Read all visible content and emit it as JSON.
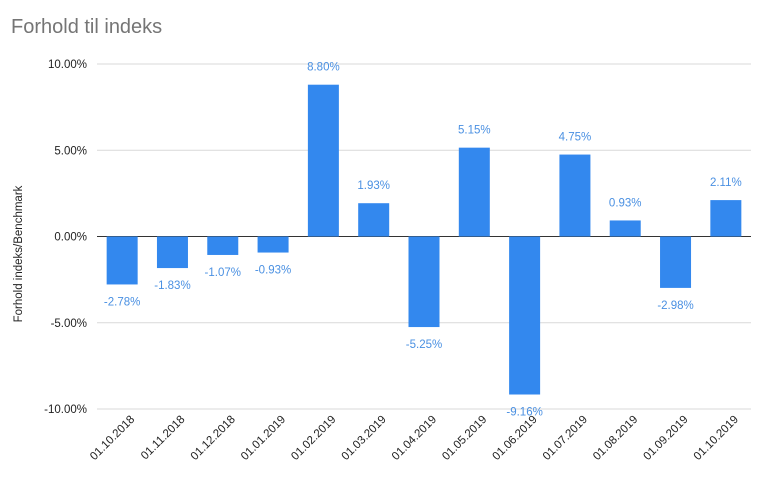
{
  "chart_data": {
    "type": "bar",
    "title": "Forhold til indeks",
    "ylabel": "Forhold indeks/Benchmark",
    "xlabel": "",
    "ylim": [
      -10,
      10
    ],
    "yticks": [
      10,
      5,
      0,
      -5,
      -10
    ],
    "ytick_labels": [
      "10.00%",
      "5.00%",
      "0.00%",
      "-5.00%",
      "-10.00%"
    ],
    "grid": true,
    "bar_color": "#3388ee",
    "label_color": "#4a90e2",
    "categories": [
      "01.10.2018",
      "01.11.2018",
      "01.12.2018",
      "01.01.2019",
      "01.02.2019",
      "01.03.2019",
      "01.04.2019",
      "01.05.2019",
      "01.06.2019",
      "01.07.2019",
      "01.08.2019",
      "01.09.2019",
      "01.10.2019"
    ],
    "values": [
      -2.78,
      -1.83,
      -1.07,
      -0.93,
      8.8,
      1.93,
      -5.25,
      5.15,
      -9.16,
      4.75,
      0.93,
      -2.98,
      2.11
    ],
    "value_labels": [
      "-2.78%",
      "-1.83%",
      "-1.07%",
      "-0.93%",
      "8.80%",
      "1.93%",
      "-5.25%",
      "5.15%",
      "-9.16%",
      "4.75%",
      "0.93%",
      "-2.98%",
      "2.11%"
    ]
  }
}
